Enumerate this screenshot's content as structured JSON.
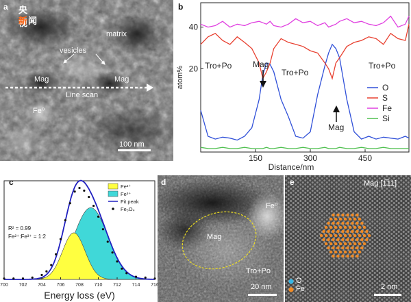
{
  "watermark": {
    "line1": "央视",
    "line2_a": "新",
    "line2_b": "闻"
  },
  "panel_a": {
    "label": "a",
    "annotations": {
      "matrix": "matrix",
      "vesicles": "vesicles",
      "mag_left": "Mag",
      "mag_right": "Mag",
      "line_scan": "Line scan",
      "fe0": "Fe⁰",
      "scale_bar": "100 nm"
    }
  },
  "panel_b": {
    "label": "b",
    "annotations": {
      "tro_po_left": "Tro+Po",
      "tro_po_mid": "Tro+Po",
      "tro_po_right": "Tro+Po",
      "mag_top": "Mag",
      "mag_bottom": "Mag"
    }
  },
  "panel_c": {
    "label": "c",
    "legend": [
      "Fe²⁺",
      "Fe³⁺",
      "Fit peak",
      "Fe₃O₄"
    ],
    "stats": {
      "r2": "R² = 0.99",
      "ratio": "Fe²⁺:Fe³⁺ = 1:2"
    }
  },
  "panel_d": {
    "label": "d",
    "annotations": {
      "mag": "Mag",
      "fe0": "Fe⁰",
      "tro_po": "Tro+Po",
      "scale_bar": "20 nm"
    }
  },
  "panel_e": {
    "label": "e",
    "title": "Mag [1̅11]",
    "legend": [
      "O",
      "Fe"
    ],
    "legend_colors": {
      "O": "#37b6e6",
      "Fe": "#f08a24"
    },
    "scale_bar": "2 nm"
  },
  "chart_data": [
    {
      "type": "line",
      "panel": "b",
      "xlabel": "Distance/nm",
      "ylabel": "atom%",
      "y_scale": "log",
      "xlim": [
        0,
        570
      ],
      "ylim": [
        5,
        60
      ],
      "x_ticks": [
        150,
        300,
        450
      ],
      "y_ticks": [
        20,
        40
      ],
      "legend_position": "right",
      "x": [
        0,
        20,
        40,
        60,
        80,
        100,
        120,
        140,
        160,
        170,
        180,
        190,
        200,
        220,
        240,
        260,
        280,
        300,
        320,
        340,
        350,
        360,
        370,
        380,
        400,
        420,
        440,
        460,
        480,
        500,
        520,
        540,
        560,
        570
      ],
      "series": [
        {
          "name": "O",
          "color": "#3050d8",
          "values": [
            10,
            6.5,
            6.2,
            6.4,
            6.3,
            6.1,
            6.5,
            7.5,
            12,
            18,
            22,
            21.5,
            19,
            12,
            9,
            6.5,
            6.3,
            7,
            13,
            21,
            26,
            30,
            28,
            24,
            12,
            7,
            6.2,
            6.5,
            6.2,
            6.4,
            6.3,
            6.2,
            6.5,
            6.3
          ]
        },
        {
          "name": "S",
          "color": "#e84030",
          "values": [
            30,
            34,
            36,
            32,
            30,
            34,
            31,
            28,
            22,
            17,
            19,
            22,
            28,
            33,
            31,
            30,
            29,
            27,
            26,
            22,
            20,
            17,
            22,
            24,
            29,
            31,
            32,
            34,
            33,
            30,
            36,
            33,
            32,
            42
          ]
        },
        {
          "name": "Fe",
          "color": "#e040e0",
          "values": [
            42,
            40,
            41,
            44,
            40,
            42,
            41,
            43,
            44,
            43,
            42,
            44,
            41,
            40,
            42,
            46,
            43,
            44,
            41,
            43,
            40,
            41,
            42,
            44,
            46,
            43,
            44,
            42,
            41,
            43,
            48,
            40,
            42,
            48
          ]
        },
        {
          "name": "Si",
          "color": "#50c050",
          "values": [
            5.4,
            5.3,
            5.3,
            5.4,
            5.3,
            5.3,
            5.4,
            5.3,
            5.3,
            5.3,
            5.4,
            5.3,
            5.3,
            5.4,
            5.3,
            5.3,
            5.4,
            5.3,
            5.3,
            5.4,
            5.3,
            5.3,
            5.3,
            5.4,
            5.3,
            5.3,
            5.4,
            5.3,
            5.3,
            5.4,
            5.3,
            5.3,
            5.3,
            5.3
          ]
        }
      ]
    },
    {
      "type": "area",
      "panel": "c",
      "xlabel": "Energy loss (eV)",
      "ylabel": "",
      "xlim": [
        700,
        716
      ],
      "ylim": [
        0,
        1.1
      ],
      "x_ticks": [
        700,
        702,
        704,
        706,
        708,
        710,
        712,
        714,
        716
      ],
      "legend_position": "top-left",
      "components": [
        {
          "name": "Fe²⁺",
          "color": "#ffff40",
          "center": 707.4,
          "height": 0.52,
          "width": 1.2
        },
        {
          "name": "Fe³⁺",
          "color": "#40d8d8",
          "center": 709.2,
          "height": 0.8,
          "width": 1.8
        }
      ],
      "fit_peak": {
        "name": "Fit peak",
        "color": "#2020c0"
      },
      "measured": {
        "name": "Fe₃O₄",
        "x": [
          700,
          701,
          702,
          703,
          704,
          704.5,
          705,
          705.5,
          706,
          706.5,
          707,
          707.5,
          708,
          708.5,
          709,
          709.5,
          710,
          710.5,
          711,
          711.5,
          712,
          712.5,
          713,
          714,
          715,
          716
        ],
        "y": [
          0.01,
          0.01,
          0.01,
          0.02,
          0.05,
          0.09,
          0.16,
          0.28,
          0.45,
          0.66,
          0.85,
          0.98,
          1.02,
          0.99,
          0.92,
          0.82,
          0.7,
          0.56,
          0.42,
          0.3,
          0.2,
          0.12,
          0.07,
          0.03,
          0.02,
          0.01
        ]
      }
    }
  ]
}
